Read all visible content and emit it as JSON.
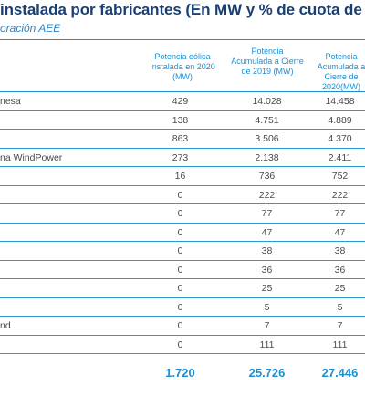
{
  "title": "instalada por fabricantes (En MW y % de cuota de m",
  "subtitle": "oración AEE",
  "columns": {
    "c1": "Potencia eólica Instalada en 2020 (MW)",
    "c2": "Potencia Acumulada a Cierre de 2019 (MW)",
    "c3": "Potencia Acumulada a Cierre de 2020(MW)"
  },
  "rows": [
    {
      "name": "nesa",
      "c1": "429",
      "c2": "14.028",
      "c3": "14.458"
    },
    {
      "name": "",
      "c1": "138",
      "c2": "4.751",
      "c3": "4.889"
    },
    {
      "name": "",
      "c1": "863",
      "c2": "3.506",
      "c3": "4.370"
    },
    {
      "name": "na WindPower",
      "c1": "273",
      "c2": "2.138",
      "c3": "2.411"
    },
    {
      "name": "",
      "c1": "16",
      "c2": "736",
      "c3": "752"
    },
    {
      "name": "",
      "c1": "0",
      "c2": "222",
      "c3": "222"
    },
    {
      "name": "",
      "c1": "0",
      "c2": "77",
      "c3": "77"
    },
    {
      "name": "",
      "c1": "0",
      "c2": "47",
      "c3": "47"
    },
    {
      "name": "",
      "c1": "0",
      "c2": "38",
      "c3": "38"
    },
    {
      "name": "",
      "c1": "0",
      "c2": "36",
      "c3": "36"
    },
    {
      "name": "",
      "c1": "0",
      "c2": "25",
      "c3": "25"
    },
    {
      "name": "",
      "c1": "0",
      "c2": "5",
      "c3": "5"
    },
    {
      "name": "nd",
      "c1": "0",
      "c2": "7",
      "c3": "7"
    },
    {
      "name": "",
      "c1": "0",
      "c2": "111",
      "c3": "111"
    }
  ],
  "totals": {
    "c1": "1.720",
    "c2": "25.726",
    "c3": "27.446"
  }
}
